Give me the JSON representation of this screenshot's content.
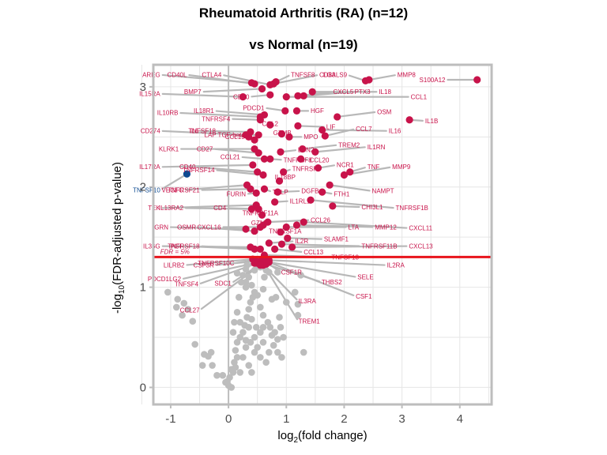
{
  "chart_data": {
    "type": "scatter",
    "title_line1": "Rheumatoid Arthritis (RA) (n=12)",
    "title_line2": "vs Normal (n=19)",
    "xlabel": {
      "prefix": "log",
      "sub": "2",
      "suffix": "(fold change)"
    },
    "ylabel": {
      "prefix": "-log",
      "sub": "10",
      "suffix": "(FDR-adjusted p-value)"
    },
    "xlim": [
      -1.3,
      4.55
    ],
    "ylim": [
      -0.17,
      3.22
    ],
    "xticks": [
      -1,
      0,
      1,
      2,
      3,
      4
    ],
    "yticks": [
      0,
      1,
      2,
      3
    ],
    "grid": true,
    "threshold": {
      "y": 1.301,
      "label": "FDR = 5%",
      "color": "#e8141c"
    },
    "colors": {
      "up": "#c8134a",
      "down": "#0d4a91",
      "ns": "#bdbdbd",
      "leader": "#b8b8b8",
      "axis": "#bdbdbd",
      "zero_line": "#bdbdbd",
      "grid": "#e6e6e6"
    },
    "significant_up": [
      {
        "gene": "S100A12",
        "x": 4.3,
        "y": 3.07,
        "lx": 3.75,
        "ly": 3.07
      },
      {
        "gene": "MMP8",
        "x": 2.43,
        "y": 3.07,
        "lx": 2.92,
        "ly": 3.12
      },
      {
        "gene": "LGALS9",
        "x": 2.37,
        "y": 3.06,
        "lx": 2.05,
        "ly": 3.12
      },
      {
        "gene": "IL18",
        "x": 1.45,
        "y": 2.95,
        "lx": 2.6,
        "ly": 2.95
      },
      {
        "gene": "PTX3",
        "x": 1.3,
        "y": 2.91,
        "lx": 2.18,
        "ly": 2.95
      },
      {
        "gene": "CXCL5",
        "x": 1.2,
        "y": 2.91,
        "lx": 1.81,
        "ly": 2.95
      },
      {
        "gene": "CCL1",
        "x": 1.0,
        "y": 2.9,
        "lx": 3.15,
        "ly": 2.9
      },
      {
        "gene": "IL1B",
        "x": 3.13,
        "y": 2.67,
        "lx": 3.4,
        "ly": 2.66
      },
      {
        "gene": "OSM",
        "x": 1.88,
        "y": 2.7,
        "lx": 2.57,
        "ly": 2.75
      },
      {
        "gene": "IL16",
        "x": 1.62,
        "y": 2.57,
        "lx": 2.77,
        "ly": 2.56
      },
      {
        "gene": "CCL7",
        "x": 1.67,
        "y": 2.51,
        "lx": 2.2,
        "ly": 2.58
      },
      {
        "gene": "IL1RN",
        "x": 1.5,
        "y": 2.35,
        "lx": 2.4,
        "ly": 2.4
      },
      {
        "gene": "TREM2",
        "x": 1.28,
        "y": 2.38,
        "lx": 1.9,
        "ly": 2.42
      },
      {
        "gene": "TNF",
        "x": 2.1,
        "y": 2.15,
        "lx": 2.4,
        "ly": 2.2
      },
      {
        "gene": "MMP9",
        "x": 2.0,
        "y": 2.12,
        "lx": 2.83,
        "ly": 2.2
      },
      {
        "gene": "NCR1",
        "x": 1.55,
        "y": 2.19,
        "lx": 1.87,
        "ly": 2.22
      },
      {
        "gene": "NAMPT",
        "x": 1.75,
        "y": 2.02,
        "lx": 2.48,
        "ly": 1.96
      },
      {
        "gene": "FTH1",
        "x": 1.62,
        "y": 1.95,
        "lx": 1.82,
        "ly": 1.93
      },
      {
        "gene": "CHI3L1",
        "x": 1.8,
        "y": 1.81,
        "lx": 2.3,
        "ly": 1.8
      },
      {
        "gene": "TNFRSF1B",
        "x": 1.42,
        "y": 1.87,
        "lx": 2.89,
        "ly": 1.79
      },
      {
        "gene": "CXCL11",
        "x": 1.3,
        "y": 1.65,
        "lx": 3.12,
        "ly": 1.59
      },
      {
        "gene": "MMP12",
        "x": 1.18,
        "y": 1.62,
        "lx": 2.53,
        "ly": 1.6
      },
      {
        "gene": "LTA",
        "x": 1.0,
        "y": 1.6,
        "lx": 2.07,
        "ly": 1.6
      },
      {
        "gene": "CXCL13",
        "x": 1.1,
        "y": 1.4,
        "lx": 3.12,
        "ly": 1.41
      },
      {
        "gene": "TNFRSF11B",
        "x": 0.92,
        "y": 1.43,
        "lx": 2.3,
        "ly": 1.41
      },
      {
        "gene": "SLAMF1",
        "x": 1.02,
        "y": 1.49,
        "lx": 1.65,
        "ly": 1.48
      },
      {
        "gene": "IL2RA",
        "x": 0.7,
        "y": 1.27,
        "lx": 2.74,
        "ly": 1.22
      },
      {
        "gene": "TNFSF13",
        "x": 0.62,
        "y": 1.32,
        "lx": 1.78,
        "ly": 1.3
      },
      {
        "gene": "CCL13",
        "x": 0.8,
        "y": 1.38,
        "lx": 1.3,
        "ly": 1.35
      },
      {
        "gene": "CCL26",
        "x": 0.68,
        "y": 1.65,
        "lx": 1.42,
        "ly": 1.67
      },
      {
        "gene": "IL1RL1",
        "x": 0.8,
        "y": 1.85,
        "lx": 1.06,
        "ly": 1.86
      },
      {
        "gene": "DGFB",
        "x": 0.85,
        "y": 1.95,
        "lx": 1.26,
        "ly": 1.96
      },
      {
        "gene": "IL18BP",
        "x": 0.88,
        "y": 2.06,
        "lx": 0.98,
        "ly": 2.1
      },
      {
        "gene": "TNFRSF9",
        "x": 0.95,
        "y": 2.15,
        "lx": 1.1,
        "ly": 2.18
      },
      {
        "gene": "TNFRSF8",
        "x": 0.72,
        "y": 2.28,
        "lx": 0.95,
        "ly": 2.27
      },
      {
        "gene": "CCL20",
        "x": 1.25,
        "y": 2.28,
        "lx": 1.4,
        "ly": 2.27
      },
      {
        "gene": "LCN2",
        "x": 0.9,
        "y": 2.35,
        "lx": 1.2,
        "ly": 2.37
      },
      {
        "gene": "MPO",
        "x": 1.05,
        "y": 2.5,
        "lx": 1.3,
        "ly": 2.5
      },
      {
        "gene": "GZMB",
        "x": 0.92,
        "y": 2.53,
        "lx": 0.93,
        "ly": 2.54
      },
      {
        "gene": "LIF",
        "x": 1.2,
        "y": 2.61,
        "lx": 1.69,
        "ly": 2.6
      },
      {
        "gene": "HGF",
        "x": 1.18,
        "y": 2.76,
        "lx": 1.42,
        "ly": 2.76
      },
      {
        "gene": "PDCD1",
        "x": 0.98,
        "y": 2.76,
        "lx": 0.62,
        "ly": 2.79
      },
      {
        "gene": "CCL2",
        "x": 0.72,
        "y": 2.62,
        "lx": 0.72,
        "ly": 2.63
      },
      {
        "gene": "LAP TGF-beta-1",
        "x": 0.52,
        "y": 2.52,
        "lx": 0.38,
        "ly": 2.52
      },
      {
        "gene": "TNFSF8",
        "x": 0.82,
        "y": 3.05,
        "lx": 1.08,
        "ly": 3.12
      },
      {
        "gene": "CD83",
        "x": 0.78,
        "y": 3.03,
        "lx": 1.57,
        "ly": 3.12
      },
      {
        "gene": "CTLA4",
        "x": 0.72,
        "y": 3.02,
        "lx": -0.12,
        "ly": 3.12
      },
      {
        "gene": "CD80",
        "x": 0.72,
        "y": 2.92,
        "lx": 0.36,
        "ly": 2.9
      },
      {
        "gene": "BMP7",
        "x": 0.58,
        "y": 2.98,
        "lx": -0.47,
        "ly": 2.95
      },
      {
        "gene": "AREG",
        "x": 0.4,
        "y": 3.04,
        "lx": -1.18,
        "ly": 3.12
      },
      {
        "gene": "CD40L",
        "x": 0.45,
        "y": 3.03,
        "lx": -0.72,
        "ly": 3.12
      },
      {
        "gene": "IL15RA",
        "x": 0.25,
        "y": 2.9,
        "lx": -1.18,
        "ly": 2.93
      },
      {
        "gene": "IL10RB",
        "x": 0.55,
        "y": 2.7,
        "lx": -0.87,
        "ly": 2.74
      },
      {
        "gene": "IL18R1",
        "x": 0.62,
        "y": 2.72,
        "lx": -0.25,
        "ly": 2.76
      },
      {
        "gene": "TNFRSF4",
        "x": 0.55,
        "y": 2.67,
        "lx": 0.03,
        "ly": 2.68
      },
      {
        "gene": "CD274",
        "x": 0.3,
        "y": 2.52,
        "lx": -1.18,
        "ly": 2.56
      },
      {
        "gene": "IL6",
        "x": 0.38,
        "y": 2.55,
        "lx": -0.52,
        "ly": 2.56
      },
      {
        "gene": "TNFSF18",
        "x": 0.35,
        "y": 2.5,
        "lx": -0.22,
        "ly": 2.56
      },
      {
        "gene": "CCL19",
        "x": 0.45,
        "y": 2.47,
        "lx": 0.28,
        "ly": 2.5
      },
      {
        "gene": "KLRK1",
        "x": 0.45,
        "y": 2.38,
        "lx": -0.86,
        "ly": 2.38
      },
      {
        "gene": "CD27",
        "x": 0.52,
        "y": 2.34,
        "lx": -0.27,
        "ly": 2.38
      },
      {
        "gene": "CCL21",
        "x": 0.62,
        "y": 2.28,
        "lx": 0.2,
        "ly": 2.3
      },
      {
        "gene": "IL17RA",
        "x": 0.42,
        "y": 2.22,
        "lx": -1.18,
        "ly": 2.2
      },
      {
        "gene": "CD40",
        "x": 0.5,
        "y": 2.15,
        "lx": -0.57,
        "ly": 2.2
      },
      {
        "gene": "TNFRSF14",
        "x": 0.6,
        "y": 2.12,
        "lx": -0.24,
        "ly": 2.17
      },
      {
        "gene": "VEGFC",
        "x": 0.32,
        "y": 2.02,
        "lx": -0.78,
        "ly": 1.97
      },
      {
        "gene": "TNFRSF21",
        "x": 0.38,
        "y": 1.98,
        "lx": -0.5,
        "ly": 1.97
      },
      {
        "gene": "TSLP",
        "x": 0.62,
        "y": 1.98,
        "lx": 0.76,
        "ly": 1.95
      },
      {
        "gene": "FURIN",
        "x": 0.48,
        "y": 1.94,
        "lx": 0.3,
        "ly": 1.93
      },
      {
        "gene": "TEK",
        "x": 0.48,
        "y": 1.82,
        "lx": -1.18,
        "ly": 1.79
      },
      {
        "gene": "IL13RA2",
        "x": 0.4,
        "y": 1.78,
        "lx": -0.78,
        "ly": 1.79
      },
      {
        "gene": "CD4",
        "x": 0.52,
        "y": 1.78,
        "lx": -0.04,
        "ly": 1.79
      },
      {
        "gene": "TNFRSF11A",
        "x": 0.58,
        "y": 1.72,
        "lx": 0.55,
        "ly": 1.74
      },
      {
        "gene": "GRN",
        "x": 0.3,
        "y": 1.58,
        "lx": -1.04,
        "ly": 1.6
      },
      {
        "gene": "OSMR",
        "x": 0.45,
        "y": 1.56,
        "lx": -0.56,
        "ly": 1.6
      },
      {
        "gene": "CXCL16",
        "x": 0.55,
        "y": 1.6,
        "lx": -0.13,
        "ly": 1.6
      },
      {
        "gene": "GZMA",
        "x": 0.6,
        "y": 1.62,
        "lx": 0.55,
        "ly": 1.64
      },
      {
        "gene": "TNFRSF1A",
        "x": 0.9,
        "y": 1.55,
        "lx": 0.98,
        "ly": 1.56
      },
      {
        "gene": "IL36G",
        "x": 0.38,
        "y": 1.4,
        "lx": -1.18,
        "ly": 1.41
      },
      {
        "gene": "PGF",
        "x": 0.45,
        "y": 1.38,
        "lx": -0.78,
        "ly": 1.41
      },
      {
        "gene": "TNFRSF18",
        "x": 0.55,
        "y": 1.38,
        "lx": -0.5,
        "ly": 1.41
      },
      {
        "gene": "IL2R",
        "x": 0.7,
        "y": 1.44,
        "lx": 1.15,
        "ly": 1.46
      },
      {
        "gene": "LILRB2",
        "x": 0.42,
        "y": 1.28,
        "lx": -0.76,
        "ly": 1.22
      },
      {
        "gene": "CSF3R",
        "x": 0.48,
        "y": 1.26,
        "lx": -0.25,
        "ly": 1.22
      },
      {
        "gene": "TNFRSF10C",
        "x": 0.58,
        "y": 1.28,
        "lx": 0.1,
        "ly": 1.24
      },
      {
        "gene": "CSF1R",
        "x": 0.62,
        "y": 1.26,
        "lx": 0.91,
        "ly": 1.15
      },
      {
        "gene": "SELE",
        "x": 0.7,
        "y": 1.25,
        "lx": 2.23,
        "ly": 1.1
      },
      {
        "gene": "THBS2",
        "x": 0.65,
        "y": 1.23,
        "lx": 1.61,
        "ly": 1.05
      },
      {
        "gene": "CSF1",
        "x": 0.65,
        "y": 1.26,
        "lx": 2.2,
        "ly": 0.91
      },
      {
        "gene": "IL3RA",
        "x": 0.6,
        "y": 1.22,
        "lx": 1.21,
        "ly": 0.86
      },
      {
        "gene": "TREM1",
        "x": 0.58,
        "y": 1.25,
        "lx": 1.21,
        "ly": 0.66
      },
      {
        "gene": "PDCD1LG2",
        "x": 0.45,
        "y": 1.24,
        "lx": -0.82,
        "ly": 1.08
      },
      {
        "gene": "TNFSF4",
        "x": 0.5,
        "y": 1.24,
        "lx": -0.52,
        "ly": 1.03
      },
      {
        "gene": "SDC1",
        "x": 0.55,
        "y": 1.23,
        "lx": 0.05,
        "ly": 1.04
      },
      {
        "gene": "CCL27",
        "x": 0.55,
        "y": 1.22,
        "lx": -0.5,
        "ly": 0.77
      }
    ],
    "significant_down": [
      {
        "gene": "TNFSF10",
        "x": -0.72,
        "y": 2.13,
        "lx": -1.18,
        "ly": 1.97
      }
    ],
    "not_significant": [
      [
        -1.05,
        0.95
      ],
      [
        -0.88,
        0.88
      ],
      [
        -0.77,
        0.84
      ],
      [
        -0.8,
        0.72
      ],
      [
        -0.9,
        0.8
      ],
      [
        -0.62,
        0.66
      ],
      [
        -0.7,
        0.78
      ],
      [
        -0.58,
        0.43
      ],
      [
        -0.42,
        0.33
      ],
      [
        -0.45,
        0.22
      ],
      [
        -0.28,
        0.22
      ],
      [
        -0.3,
        0.35
      ],
      [
        -0.35,
        0.31
      ],
      [
        -0.2,
        0.12
      ],
      [
        -0.1,
        0.12
      ],
      [
        -0.05,
        0.05
      ],
      [
        0.05,
        0.0
      ],
      [
        0.0,
        0.02
      ],
      [
        -0.02,
        0.06
      ],
      [
        0.02,
        0.1
      ],
      [
        0.08,
        0.15
      ],
      [
        0.12,
        0.2
      ],
      [
        0.1,
        0.25
      ],
      [
        0.05,
        0.18
      ],
      [
        0.15,
        0.3
      ],
      [
        0.12,
        0.37
      ],
      [
        0.15,
        0.45
      ],
      [
        0.2,
        0.5
      ],
      [
        0.25,
        0.55
      ],
      [
        0.3,
        0.47
      ],
      [
        0.28,
        0.62
      ],
      [
        0.32,
        0.7
      ],
      [
        0.35,
        0.78
      ],
      [
        0.38,
        0.85
      ],
      [
        0.42,
        0.9
      ],
      [
        0.45,
        0.95
      ],
      [
        0.3,
        1.0
      ],
      [
        0.22,
        1.05
      ],
      [
        0.25,
        1.12
      ],
      [
        0.3,
        1.18
      ],
      [
        0.35,
        1.1
      ],
      [
        0.4,
        1.02
      ],
      [
        0.5,
        0.92
      ],
      [
        0.55,
        0.8
      ],
      [
        0.6,
        0.72
      ],
      [
        0.68,
        0.65
      ],
      [
        0.72,
        0.6
      ],
      [
        0.75,
        0.52
      ],
      [
        0.6,
        0.45
      ],
      [
        0.5,
        0.4
      ],
      [
        0.45,
        0.35
      ],
      [
        0.55,
        0.3
      ],
      [
        0.65,
        0.25
      ],
      [
        0.7,
        0.35
      ],
      [
        0.78,
        0.42
      ],
      [
        0.85,
        0.48
      ],
      [
        0.8,
        0.55
      ],
      [
        0.88,
        0.7
      ],
      [
        0.75,
        0.88
      ],
      [
        0.82,
        0.9
      ],
      [
        0.6,
        0.98
      ],
      [
        0.62,
        1.1
      ],
      [
        0.4,
        0.68
      ],
      [
        0.35,
        0.6
      ],
      [
        0.3,
        0.4
      ],
      [
        0.25,
        0.3
      ],
      [
        0.2,
        0.15
      ],
      [
        0.35,
        0.22
      ],
      [
        0.4,
        0.15
      ],
      [
        0.48,
        0.6
      ],
      [
        0.55,
        0.55
      ],
      [
        0.18,
        0.9
      ],
      [
        0.15,
        0.75
      ],
      [
        0.08,
        0.55
      ],
      [
        0.1,
        0.65
      ],
      [
        0.2,
        0.65
      ],
      [
        0.45,
        0.5
      ],
      [
        0.38,
        0.45
      ],
      [
        0.6,
        0.6
      ],
      [
        0.9,
        0.6
      ],
      [
        0.95,
        0.5
      ],
      [
        0.85,
        0.35
      ],
      [
        0.92,
        0.3
      ],
      [
        1.0,
        0.85
      ],
      [
        1.2,
        0.83
      ],
      [
        1.15,
        0.95
      ],
      [
        1.2,
        0.72
      ],
      [
        1.3,
        0.35
      ],
      [
        1.25,
        1.12
      ],
      [
        0.7,
        1.15
      ],
      [
        0.45,
        1.17
      ],
      [
        0.3,
        1.05
      ],
      [
        0.15,
        1.14
      ],
      [
        0.32,
        1.22
      ],
      [
        0.55,
        1.2
      ],
      [
        0.65,
        1.17
      ],
      [
        0.85,
        1.15
      ]
    ]
  }
}
